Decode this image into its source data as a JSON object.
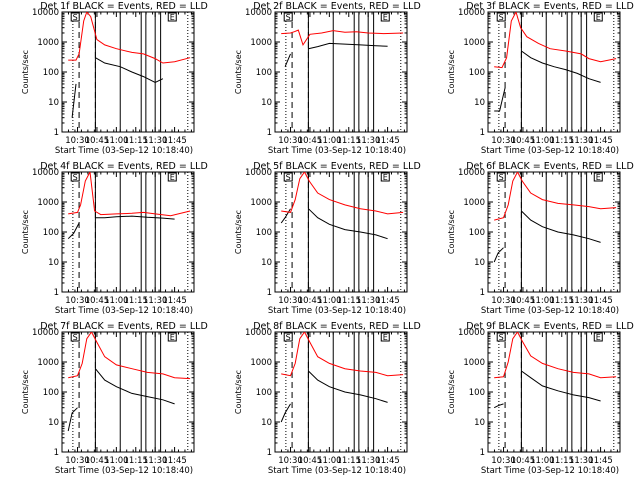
{
  "figure": {
    "title": "Det {n}f BLACK = Events, RED = LLD"
  },
  "chart_data": [
    {
      "type": "line",
      "title": "Det 1f BLACK = Events, RED = LLD",
      "xlabel": "Start Time (03-Sep-12 10:18:40)",
      "ylabel": "Counts/sec",
      "yscale": "log",
      "ylim": [
        1,
        10000
      ],
      "x_ticks": [
        "10:30",
        "10:45",
        "11:00",
        "11:15",
        "11:30",
        "11:45"
      ],
      "y_ticks": [
        "1",
        "10",
        "100",
        "1000",
        "10000"
      ],
      "series": [
        {
          "color": "#000000",
          "name": "BLACK = Events",
          "x": [
            10.38,
            10.43,
            10.48,
            10.5,
            10.52,
            10.6,
            10.67,
            10.73,
            10.85,
            11.05,
            11.2,
            11.35,
            11.5,
            11.6,
            11.75
          ],
          "y": [
            null,
            3,
            40,
            null,
            null,
            null,
            null,
            300,
            200,
            150,
            100,
            70,
            45,
            60,
            null
          ]
        },
        {
          "color": "#ff0000",
          "name": "RED = LLD",
          "x": [
            10.38,
            10.48,
            10.52,
            10.58,
            10.62,
            10.67,
            10.75,
            10.85,
            11.0,
            11.2,
            11.35,
            11.5,
            11.6,
            11.75,
            11.95
          ],
          "y": [
            250,
            250,
            400,
            5000,
            10000,
            7000,
            1200,
            800,
            600,
            450,
            400,
            280,
            200,
            220,
            300
          ]
        }
      ],
      "vlines_solid": [
        10.73,
        11.05,
        11.32,
        11.38,
        11.5,
        11.57
      ],
      "vlines_dashed": [
        10.52,
        10.73
      ],
      "vlines_dotted": [
        10.44,
        11.92
      ]
    },
    {
      "type": "line",
      "title": "Det 2f BLACK = Events, RED = LLD",
      "xlabel": "Start Time (03-Sep-12 10:18:40)",
      "ylabel": "Counts/sec",
      "yscale": "log",
      "ylim": [
        1,
        10000
      ],
      "x_ticks": [
        "10:30",
        "10:45",
        "11:00",
        "11:15",
        "11:30",
        "11:45"
      ],
      "y_ticks": [
        "1",
        "10",
        "100",
        "1000",
        "10000"
      ],
      "series": [
        {
          "color": "#000000",
          "name": "BLACK = Events",
          "x": [
            10.38,
            10.43,
            10.5,
            10.55,
            10.7,
            10.73,
            10.85,
            11.0,
            11.2,
            11.4,
            11.6,
            11.75
          ],
          "y": [
            null,
            150,
            400,
            null,
            null,
            600,
            700,
            900,
            850,
            800,
            750,
            720
          ]
        },
        {
          "color": "#ff0000",
          "name": "RED = LLD",
          "x": [
            10.38,
            10.5,
            10.55,
            10.6,
            10.66,
            10.75,
            10.9,
            11.05,
            11.2,
            11.35,
            11.5,
            11.7,
            11.95
          ],
          "y": [
            1900,
            2000,
            2200,
            2500,
            800,
            1800,
            2000,
            2400,
            2100,
            2200,
            2000,
            1900,
            2000
          ]
        }
      ],
      "vlines_solid": [
        10.73,
        11.05,
        11.32,
        11.38,
        11.5,
        11.57
      ],
      "vlines_dashed": [
        10.52,
        10.73
      ],
      "vlines_dotted": [
        10.44,
        11.92
      ]
    },
    {
      "type": "line",
      "title": "Det 3f BLACK = Events, RED = LLD",
      "xlabel": "Start Time (03-Sep-12 10:18:40)",
      "ylabel": "Counts/sec",
      "yscale": "log",
      "ylim": [
        1,
        10000
      ],
      "x_ticks": [
        "10:30",
        "10:45",
        "11:00",
        "11:15",
        "11:30",
        "11:45"
      ],
      "y_ticks": [
        "1",
        "10",
        "100",
        "1000",
        "10000"
      ],
      "series": [
        {
          "color": "#000000",
          "name": "BLACK = Events",
          "x": [
            10.38,
            10.45,
            10.52,
            10.6,
            10.66,
            10.73,
            10.85,
            11.0,
            11.15,
            11.3,
            11.45,
            11.6,
            11.75
          ],
          "y": [
            5,
            5,
            30,
            null,
            null,
            500,
            300,
            200,
            150,
            120,
            90,
            60,
            45
          ]
        },
        {
          "color": "#ff0000",
          "name": "RED = LLD",
          "x": [
            10.38,
            10.48,
            10.54,
            10.6,
            10.66,
            10.72,
            10.8,
            10.95,
            11.1,
            11.3,
            11.5,
            11.6,
            11.75,
            11.95
          ],
          "y": [
            150,
            140,
            300,
            5000,
            10000,
            3000,
            1500,
            900,
            600,
            500,
            400,
            280,
            220,
            280
          ]
        }
      ],
      "vlines_solid": [
        10.73,
        11.05,
        11.32,
        11.38,
        11.5,
        11.57
      ],
      "vlines_dashed": [
        10.52,
        10.73
      ],
      "vlines_dotted": [
        10.44,
        11.92
      ]
    },
    {
      "type": "line",
      "title": "Det 4f BLACK = Events, RED = LLD",
      "xlabel": "Start Time (03-Sep-12 10:18:40)",
      "ylabel": "Counts/sec",
      "yscale": "log",
      "ylim": [
        1,
        10000
      ],
      "x_ticks": [
        "10:30",
        "10:45",
        "11:00",
        "11:15",
        "11:30",
        "11:45"
      ],
      "y_ticks": [
        "1",
        "10",
        "100",
        "1000",
        "10000"
      ],
      "series": [
        {
          "color": "#000000",
          "name": "BLACK = Events",
          "x": [
            10.38,
            10.45,
            10.52,
            10.55,
            10.7,
            10.73,
            10.85,
            11.0,
            11.2,
            11.4,
            11.6,
            11.75
          ],
          "y": [
            60,
            90,
            200,
            null,
            null,
            300,
            300,
            320,
            340,
            310,
            290,
            270
          ]
        },
        {
          "color": "#ff0000",
          "name": "RED = LLD",
          "x": [
            10.38,
            10.5,
            10.54,
            10.6,
            10.66,
            10.72,
            10.8,
            11.0,
            11.2,
            11.35,
            11.5,
            11.7,
            11.95
          ],
          "y": [
            400,
            450,
            800,
            5000,
            10000,
            500,
            380,
            400,
            420,
            450,
            400,
            350,
            500
          ]
        }
      ],
      "vlines_solid": [
        10.73,
        11.05,
        11.32,
        11.38,
        11.5,
        11.57
      ],
      "vlines_dashed": [
        10.52,
        10.73
      ],
      "vlines_dotted": [
        10.44,
        11.92
      ]
    },
    {
      "type": "line",
      "title": "Det 5f BLACK = Events, RED = LLD",
      "xlabel": "Start Time (03-Sep-12 10:18:40)",
      "ylabel": "Counts/sec",
      "yscale": "log",
      "ylim": [
        1,
        10000
      ],
      "x_ticks": [
        "10:30",
        "10:45",
        "11:00",
        "11:15",
        "11:30",
        "11:45"
      ],
      "y_ticks": [
        "1",
        "10",
        "100",
        "1000",
        "10000"
      ],
      "series": [
        {
          "color": "#000000",
          "name": "BLACK = Events",
          "x": [
            10.38,
            10.43,
            10.5,
            10.56,
            10.62,
            10.68,
            10.73,
            10.85,
            11.0,
            11.2,
            11.4,
            11.6,
            11.75
          ],
          "y": [
            200,
            300,
            600,
            null,
            null,
            null,
            600,
            300,
            180,
            120,
            100,
            80,
            60
          ]
        },
        {
          "color": "#ff0000",
          "name": "RED = LLD",
          "x": [
            10.38,
            10.5,
            10.56,
            10.62,
            10.68,
            10.74,
            10.85,
            11.0,
            11.2,
            11.4,
            11.6,
            11.75,
            11.95
          ],
          "y": [
            500,
            450,
            1200,
            6000,
            10000,
            5000,
            2000,
            1200,
            800,
            600,
            500,
            400,
            450
          ]
        }
      ],
      "vlines_solid": [
        10.73,
        11.05,
        11.32,
        11.38,
        11.5,
        11.57
      ],
      "vlines_dashed": [
        10.52,
        10.73
      ],
      "vlines_dotted": [
        10.44,
        11.92
      ]
    },
    {
      "type": "line",
      "title": "Det 6f BLACK = Events, RED = LLD",
      "xlabel": "Start Time (03-Sep-12 10:18:40)",
      "ylabel": "Counts/sec",
      "yscale": "log",
      "ylim": [
        1,
        10000
      ],
      "x_ticks": [
        "10:30",
        "10:45",
        "11:00",
        "11:15",
        "11:30",
        "11:45"
      ],
      "y_ticks": [
        "1",
        "10",
        "100",
        "1000",
        "10000"
      ],
      "series": [
        {
          "color": "#000000",
          "name": "BLACK = Events",
          "x": [
            10.38,
            10.43,
            10.5,
            10.56,
            10.62,
            10.68,
            10.73,
            10.85,
            11.0,
            11.2,
            11.4,
            11.6,
            11.75
          ],
          "y": [
            10,
            20,
            30,
            null,
            null,
            null,
            500,
            250,
            150,
            100,
            80,
            60,
            45
          ]
        },
        {
          "color": "#ff0000",
          "name": "RED = LLD",
          "x": [
            10.38,
            10.5,
            10.56,
            10.62,
            10.68,
            10.74,
            10.85,
            11.0,
            11.2,
            11.4,
            11.6,
            11.75,
            11.95
          ],
          "y": [
            250,
            300,
            800,
            5000,
            10000,
            5000,
            2000,
            1200,
            900,
            800,
            700,
            600,
            650
          ]
        }
      ],
      "vlines_solid": [
        10.73,
        11.05,
        11.32,
        11.38,
        11.5,
        11.57
      ],
      "vlines_dashed": [
        10.52,
        10.73
      ],
      "vlines_dotted": [
        10.44,
        11.92
      ]
    },
    {
      "type": "line",
      "title": "Det 7f BLACK = Events, RED = LLD",
      "xlabel": "Start Time (03-Sep-12 10:18:40)",
      "ylabel": "Counts/sec",
      "yscale": "log",
      "ylim": [
        1,
        10000
      ],
      "x_ticks": [
        "10:30",
        "10:45",
        "11:00",
        "11:15",
        "11:30",
        "11:45"
      ],
      "y_ticks": [
        "1",
        "10",
        "100",
        "1000",
        "10000"
      ],
      "series": [
        {
          "color": "#000000",
          "name": "BLACK = Events",
          "x": [
            10.38,
            10.43,
            10.5,
            10.56,
            10.62,
            10.68,
            10.73,
            10.85,
            11.0,
            11.2,
            11.4,
            11.6,
            11.75
          ],
          "y": [
            5,
            20,
            30,
            null,
            null,
            null,
            600,
            250,
            150,
            90,
            70,
            55,
            40
          ]
        },
        {
          "color": "#ff0000",
          "name": "RED = LLD",
          "x": [
            10.38,
            10.5,
            10.56,
            10.62,
            10.68,
            10.74,
            10.85,
            11.0,
            11.2,
            11.4,
            11.6,
            11.75,
            11.95
          ],
          "y": [
            300,
            350,
            900,
            6000,
            10000,
            5000,
            1500,
            800,
            600,
            450,
            400,
            300,
            280
          ]
        }
      ],
      "vlines_solid": [
        10.73,
        11.05,
        11.32,
        11.38,
        11.5,
        11.57
      ],
      "vlines_dashed": [
        10.52,
        10.73
      ],
      "vlines_dotted": [
        10.44,
        11.92
      ]
    },
    {
      "type": "line",
      "title": "Det 8f BLACK = Events, RED = LLD",
      "xlabel": "Start Time (03-Sep-12 10:18:40)",
      "ylabel": "Counts/sec",
      "yscale": "log",
      "ylim": [
        1,
        10000
      ],
      "x_ticks": [
        "10:30",
        "10:45",
        "11:00",
        "11:15",
        "11:30",
        "11:45"
      ],
      "y_ticks": [
        "1",
        "10",
        "100",
        "1000",
        "10000"
      ],
      "series": [
        {
          "color": "#000000",
          "name": "BLACK = Events",
          "x": [
            10.38,
            10.43,
            10.5,
            10.56,
            10.62,
            10.68,
            10.73,
            10.85,
            11.0,
            11.2,
            11.4,
            11.6,
            11.75
          ],
          "y": [
            10,
            20,
            40,
            null,
            null,
            null,
            500,
            250,
            150,
            100,
            80,
            60,
            45
          ]
        },
        {
          "color": "#ff0000",
          "name": "RED = LLD",
          "x": [
            10.38,
            10.5,
            10.56,
            10.62,
            10.68,
            10.74,
            10.85,
            11.0,
            11.2,
            11.4,
            11.6,
            11.75,
            11.95
          ],
          "y": [
            400,
            350,
            900,
            6000,
            10000,
            5000,
            1500,
            900,
            600,
            500,
            450,
            350,
            380
          ]
        }
      ],
      "vlines_solid": [
        10.73,
        11.05,
        11.32,
        11.38,
        11.5,
        11.57
      ],
      "vlines_dashed": [
        10.52,
        10.73
      ],
      "vlines_dotted": [
        10.44,
        11.92
      ]
    },
    {
      "type": "line",
      "title": "Det 9f BLACK = Events, RED = LLD",
      "xlabel": "Start Time (03-Sep-12 10:18:40)",
      "ylabel": "Counts/sec",
      "yscale": "log",
      "ylim": [
        1,
        10000
      ],
      "x_ticks": [
        "10:30",
        "10:45",
        "11:00",
        "11:15",
        "11:30",
        "11:45"
      ],
      "y_ticks": [
        "1",
        "10",
        "100",
        "1000",
        "10000"
      ],
      "series": [
        {
          "color": "#000000",
          "name": "BLACK = Events",
          "x": [
            10.38,
            10.43,
            10.5,
            10.56,
            10.62,
            10.68,
            10.73,
            10.85,
            11.0,
            11.2,
            11.4,
            11.6,
            11.75
          ],
          "y": [
            30,
            35,
            40,
            null,
            null,
            null,
            500,
            300,
            160,
            110,
            80,
            65,
            50
          ]
        },
        {
          "color": "#ff0000",
          "name": "RED = LLD",
          "x": [
            10.38,
            10.5,
            10.56,
            10.62,
            10.68,
            10.74,
            10.85,
            11.0,
            11.2,
            11.4,
            11.6,
            11.75,
            11.95
          ],
          "y": [
            300,
            320,
            1000,
            6000,
            10000,
            5000,
            1600,
            900,
            600,
            450,
            400,
            300,
            320
          ]
        }
      ],
      "vlines_solid": [
        10.73,
        11.05,
        11.32,
        11.38,
        11.5,
        11.57
      ],
      "vlines_dashed": [
        10.52,
        10.73
      ],
      "vlines_dotted": [
        10.44,
        11.92
      ]
    }
  ],
  "markers": {
    "start_box": "S",
    "end_box": "E"
  }
}
